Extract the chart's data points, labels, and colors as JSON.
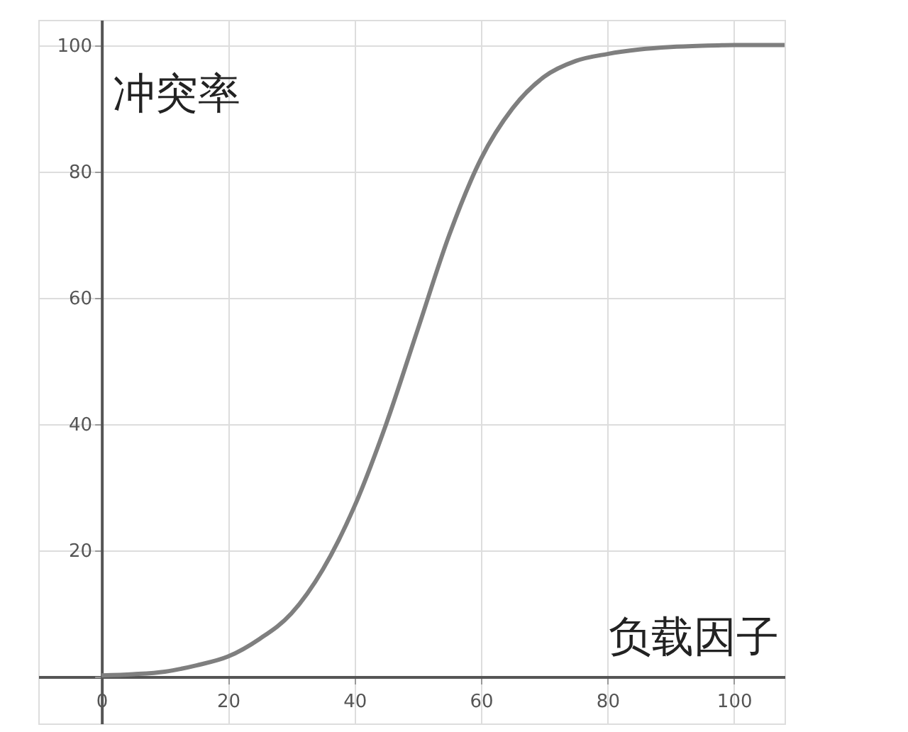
{
  "chart_data": {
    "type": "line",
    "xlabel": "负载因子",
    "ylabel": "冲突率",
    "x": [
      0,
      5,
      10,
      15,
      20,
      25,
      30,
      35,
      40,
      45,
      50,
      55,
      60,
      65,
      70,
      75,
      80,
      85,
      90,
      95,
      100,
      108
    ],
    "series": [
      {
        "color": "#7f7f7f",
        "values": [
          0.2,
          0.4,
          0.8,
          1.8,
          3.2,
          6,
          10,
          17,
          27,
          40,
          55,
          70,
          82,
          90,
          95,
          97.5,
          98.6,
          99.3,
          99.7,
          99.9,
          100,
          100
        ]
      }
    ],
    "xlim": [
      -10,
      108
    ],
    "ylim": [
      -7.4,
      104
    ],
    "xticks": [
      0,
      20,
      40,
      60,
      80,
      100
    ],
    "yticks": [
      {
        "value": 0,
        "label": null
      },
      20,
      40,
      60,
      80,
      100
    ],
    "grid": true,
    "marker": "none",
    "line_style": "solid"
  }
}
